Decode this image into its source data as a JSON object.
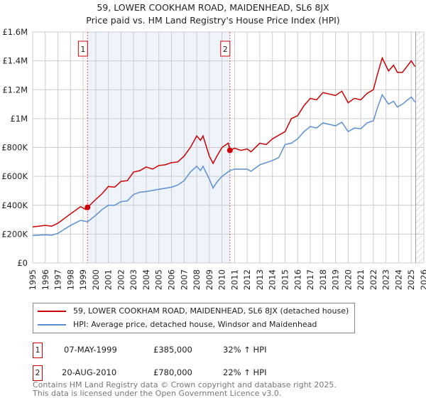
{
  "chart_data": {
    "type": "line",
    "title": "59, LOWER COOKHAM ROAD, MAIDENHEAD, SL6 8JX",
    "subtitle": "Price paid vs. HM Land Registry's House Price Index (HPI)",
    "xlim": [
      1995,
      2026
    ],
    "ylim": [
      0,
      1600000
    ],
    "x_ticks": [
      "1995",
      "1996",
      "1997",
      "1998",
      "1999",
      "2000",
      "2001",
      "2002",
      "2003",
      "2004",
      "2005",
      "2006",
      "2007",
      "2008",
      "2009",
      "2010",
      "2011",
      "2012",
      "2013",
      "2014",
      "2015",
      "2016",
      "2017",
      "2018",
      "2019",
      "2020",
      "2021",
      "2022",
      "2023",
      "2024",
      "2025",
      "2026"
    ],
    "y_ticks": [
      {
        "v": 0,
        "label": "£0"
      },
      {
        "v": 200000,
        "label": "£200K"
      },
      {
        "v": 400000,
        "label": "£400K"
      },
      {
        "v": 600000,
        "label": "£600K"
      },
      {
        "v": 800000,
        "label": "£800K"
      },
      {
        "v": 1000000,
        "label": "£1M"
      },
      {
        "v": 1200000,
        "label": "£1.2M"
      },
      {
        "v": 1400000,
        "label": "£1.4M"
      },
      {
        "v": 1600000,
        "label": "£1.6M"
      }
    ],
    "grid": true,
    "shaded_range": [
      1999.35,
      2010.63
    ],
    "future_hatch_from": 2025.35,
    "series": [
      {
        "name": "59, LOWER COOKHAM ROAD, MAIDENHEAD, SL6 8JX (detached house)",
        "color": "#cc0000",
        "points": [
          [
            1995,
            250
          ],
          [
            1996,
            260
          ],
          [
            1996.5,
            255
          ],
          [
            1997,
            275
          ],
          [
            1998,
            340
          ],
          [
            1998.8,
            390
          ],
          [
            1999.2,
            370
          ],
          [
            1999.35,
            385
          ],
          [
            2000,
            440
          ],
          [
            2000.5,
            480
          ],
          [
            2001,
            530
          ],
          [
            2001.5,
            525
          ],
          [
            2002,
            565
          ],
          [
            2002.5,
            570
          ],
          [
            2003,
            630
          ],
          [
            2003.5,
            640
          ],
          [
            2004,
            665
          ],
          [
            2004.5,
            650
          ],
          [
            2005,
            675
          ],
          [
            2005.5,
            680
          ],
          [
            2006,
            695
          ],
          [
            2006.5,
            700
          ],
          [
            2007,
            740
          ],
          [
            2007.5,
            800
          ],
          [
            2008,
            880
          ],
          [
            2008.3,
            850
          ],
          [
            2008.5,
            880
          ],
          [
            2009,
            740
          ],
          [
            2009.3,
            690
          ],
          [
            2009.6,
            740
          ],
          [
            2010,
            800
          ],
          [
            2010.5,
            830
          ],
          [
            2010.63,
            780
          ],
          [
            2011,
            795
          ],
          [
            2011.5,
            780
          ],
          [
            2012,
            790
          ],
          [
            2012.3,
            770
          ],
          [
            2013,
            830
          ],
          [
            2013.5,
            820
          ],
          [
            2014,
            860
          ],
          [
            2015,
            910
          ],
          [
            2015.5,
            1000
          ],
          [
            2016,
            1020
          ],
          [
            2016.5,
            1090
          ],
          [
            2017,
            1140
          ],
          [
            2017.5,
            1130
          ],
          [
            2018,
            1180
          ],
          [
            2019,
            1160
          ],
          [
            2019.5,
            1190
          ],
          [
            2020,
            1110
          ],
          [
            2020.5,
            1140
          ],
          [
            2021,
            1130
          ],
          [
            2021.5,
            1175
          ],
          [
            2022,
            1200
          ],
          [
            2022.3,
            1300
          ],
          [
            2022.7,
            1420
          ],
          [
            2023.2,
            1330
          ],
          [
            2023.6,
            1370
          ],
          [
            2023.9,
            1320
          ],
          [
            2024.3,
            1320
          ],
          [
            2025,
            1400
          ],
          [
            2025.3,
            1360
          ]
        ]
      },
      {
        "name": "HPI: Average price, detached house, Windsor and Maidenhead",
        "color": "#5b8fd4",
        "points": [
          [
            1995,
            190
          ],
          [
            1996,
            195
          ],
          [
            1996.5,
            192
          ],
          [
            1997,
            205
          ],
          [
            1998,
            260
          ],
          [
            1998.8,
            295
          ],
          [
            1999.35,
            285
          ],
          [
            2000,
            330
          ],
          [
            2000.5,
            370
          ],
          [
            2001,
            400
          ],
          [
            2001.5,
            400
          ],
          [
            2002,
            425
          ],
          [
            2002.5,
            430
          ],
          [
            2003,
            475
          ],
          [
            2003.5,
            490
          ],
          [
            2004,
            495
          ],
          [
            2005,
            510
          ],
          [
            2006,
            525
          ],
          [
            2006.5,
            540
          ],
          [
            2007,
            570
          ],
          [
            2007.5,
            630
          ],
          [
            2008,
            670
          ],
          [
            2008.3,
            640
          ],
          [
            2008.5,
            670
          ],
          [
            2009,
            580
          ],
          [
            2009.3,
            520
          ],
          [
            2009.6,
            560
          ],
          [
            2010,
            600
          ],
          [
            2010.63,
            640
          ],
          [
            2011,
            650
          ],
          [
            2012,
            650
          ],
          [
            2012.3,
            635
          ],
          [
            2013,
            680
          ],
          [
            2014,
            710
          ],
          [
            2014.5,
            730
          ],
          [
            2015,
            820
          ],
          [
            2015.5,
            830
          ],
          [
            2016,
            860
          ],
          [
            2016.5,
            910
          ],
          [
            2017,
            945
          ],
          [
            2017.5,
            935
          ],
          [
            2018,
            970
          ],
          [
            2019,
            950
          ],
          [
            2019.5,
            975
          ],
          [
            2020,
            910
          ],
          [
            2020.5,
            935
          ],
          [
            2021,
            930
          ],
          [
            2021.5,
            970
          ],
          [
            2022,
            985
          ],
          [
            2022.3,
            1070
          ],
          [
            2022.7,
            1165
          ],
          [
            2023.2,
            1100
          ],
          [
            2023.6,
            1120
          ],
          [
            2023.9,
            1080
          ],
          [
            2024.3,
            1100
          ],
          [
            2025,
            1150
          ],
          [
            2025.3,
            1115
          ]
        ]
      }
    ],
    "sales": [
      {
        "id": "1",
        "x": 1999.35,
        "value": 385000,
        "date": "07-MAY-1999",
        "price": "£385,000",
        "hpi": "32% ↑ HPI"
      },
      {
        "id": "2",
        "x": 2010.63,
        "value": 780000,
        "date": "20-AUG-2010",
        "price": "£780,000",
        "hpi": "22% ↑ HPI"
      }
    ]
  },
  "footer": {
    "line1": "Contains HM Land Registry data © Crown copyright and database right 2025.",
    "line2": "This data is licensed under the Open Government Licence v3.0."
  }
}
